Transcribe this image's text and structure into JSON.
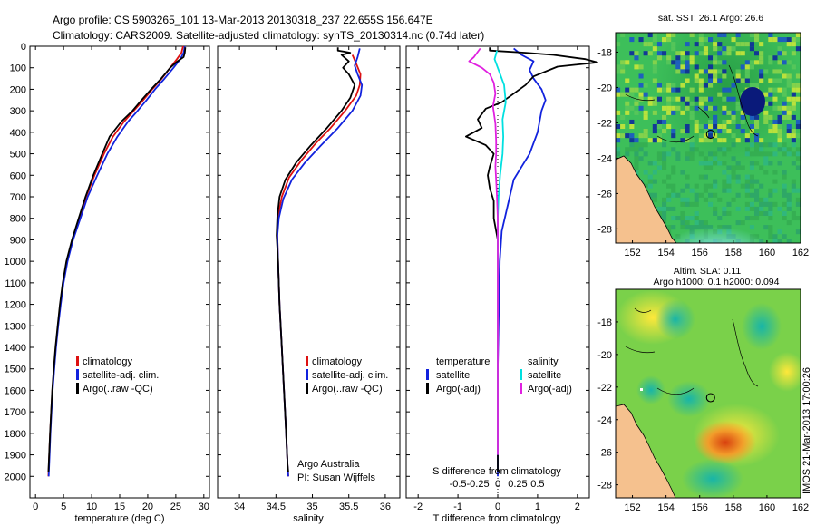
{
  "header": {
    "line1": "Argo profile: CS 5903265_101 13-Mar-2013 20130318_237 22.655S 156.647E",
    "line2": "Climatology: CARS2009. Satellite-adjusted climatology: synTS_20130314.nc (0.74d later)"
  },
  "side_label": "IMOS 21-Mar-2013 17:00:26",
  "credit": {
    "line1": "Argo Australia",
    "line2": "PI: Susan Wijffels"
  },
  "colors": {
    "clim": "#dd1111",
    "sat": "#1122dd",
    "argo": "#000000",
    "cyan": "#00e0e0",
    "magenta": "#e020e0",
    "land": "#f5c18e"
  },
  "chart_data": [
    {
      "id": "temperature",
      "type": "line",
      "xlabel": "temperature (deg C)",
      "ylabel": "",
      "xlim": [
        -1,
        31
      ],
      "ylim": [
        2100,
        0
      ],
      "xticks": [
        "0",
        "5",
        "10",
        "15",
        "20",
        "25",
        "30"
      ],
      "yticks": [
        "0",
        "100",
        "200",
        "300",
        "400",
        "500",
        "600",
        "700",
        "800",
        "900",
        "1000",
        "1100",
        "1200",
        "1300",
        "1400",
        "1500",
        "1600",
        "1700",
        "1800",
        "1900",
        "2000"
      ],
      "legend": [
        "climatology",
        "satellite-adj. clim.",
        "Argo(..raw -QC)"
      ],
      "series": [
        {
          "name": "climatology",
          "color": "clim",
          "points": [
            [
              26.3,
              0
            ],
            [
              26.0,
              30
            ],
            [
              25.2,
              60
            ],
            [
              24.0,
              100
            ],
            [
              22.5,
              150
            ],
            [
              20.8,
              200
            ],
            [
              19.2,
              250
            ],
            [
              17.5,
              300
            ],
            [
              15.8,
              350
            ],
            [
              13.8,
              420
            ],
            [
              12.2,
              500
            ],
            [
              10.5,
              600
            ],
            [
              9.0,
              700
            ],
            [
              7.8,
              800
            ],
            [
              6.6,
              900
            ],
            [
              5.6,
              1000
            ],
            [
              4.9,
              1100
            ],
            [
              4.4,
              1200
            ],
            [
              4.0,
              1300
            ],
            [
              3.6,
              1400
            ],
            [
              3.3,
              1500
            ],
            [
              3.0,
              1600
            ],
            [
              2.8,
              1700
            ],
            [
              2.6,
              1800
            ],
            [
              2.45,
              1900
            ],
            [
              2.3,
              2000
            ]
          ]
        },
        {
          "name": "satellite-adj. clim.",
          "color": "sat",
          "points": [
            [
              26.6,
              0
            ],
            [
              26.4,
              30
            ],
            [
              25.8,
              60
            ],
            [
              24.6,
              100
            ],
            [
              23.0,
              150
            ],
            [
              21.3,
              200
            ],
            [
              19.8,
              250
            ],
            [
              18.2,
              300
            ],
            [
              16.5,
              350
            ],
            [
              14.6,
              420
            ],
            [
              12.8,
              500
            ],
            [
              11.0,
              600
            ],
            [
              9.3,
              700
            ],
            [
              8.0,
              800
            ],
            [
              6.7,
              900
            ],
            [
              5.7,
              1000
            ],
            [
              5.0,
              1100
            ],
            [
              4.5,
              1200
            ],
            [
              4.05,
              1300
            ],
            [
              3.65,
              1400
            ],
            [
              3.35,
              1500
            ],
            [
              3.05,
              1600
            ],
            [
              2.85,
              1700
            ],
            [
              2.65,
              1800
            ],
            [
              2.5,
              1900
            ],
            [
              2.35,
              2000
            ]
          ]
        },
        {
          "name": "Argo(..raw -QC)",
          "color": "argo",
          "points": [
            [
              26.7,
              5
            ],
            [
              26.6,
              30
            ],
            [
              26.4,
              50
            ],
            [
              25.3,
              70
            ],
            [
              24.0,
              100
            ],
            [
              22.4,
              150
            ],
            [
              20.6,
              200
            ],
            [
              18.9,
              250
            ],
            [
              17.3,
              300
            ],
            [
              15.3,
              350
            ],
            [
              13.2,
              420
            ],
            [
              11.9,
              500
            ],
            [
              10.3,
              600
            ],
            [
              8.9,
              700
            ],
            [
              7.7,
              800
            ],
            [
              6.5,
              900
            ],
            [
              5.5,
              1000
            ],
            [
              4.85,
              1100
            ],
            [
              4.35,
              1200
            ],
            [
              3.95,
              1300
            ],
            [
              3.55,
              1400
            ],
            [
              3.25,
              1500
            ],
            [
              2.98,
              1600
            ],
            [
              2.78,
              1700
            ],
            [
              2.58,
              1800
            ],
            [
              2.43,
              1900
            ],
            [
              2.3,
              1980
            ]
          ]
        }
      ]
    },
    {
      "id": "salinity",
      "type": "line",
      "xlabel": "salinity",
      "ylabel": "",
      "xlim": [
        33.7,
        36.2
      ],
      "ylim": [
        2100,
        0
      ],
      "xticks": [
        "34",
        "34.5",
        "35",
        "35.5",
        "36"
      ],
      "legend": [
        "climatology",
        "satellite-adj. clim.",
        "Argo(..raw -QC)"
      ],
      "series": [
        {
          "name": "climatology",
          "color": "clim",
          "points": [
            [
              35.55,
              40
            ],
            [
              35.6,
              80
            ],
            [
              35.66,
              130
            ],
            [
              35.65,
              180
            ],
            [
              35.6,
              230
            ],
            [
              35.45,
              300
            ],
            [
              35.25,
              380
            ],
            [
              35.05,
              450
            ],
            [
              34.85,
              530
            ],
            [
              34.68,
              610
            ],
            [
              34.58,
              700
            ],
            [
              34.53,
              790
            ],
            [
              34.52,
              880
            ],
            [
              34.53,
              1000
            ],
            [
              34.55,
              1200
            ],
            [
              34.58,
              1400
            ],
            [
              34.61,
              1600
            ],
            [
              34.64,
              1800
            ],
            [
              34.66,
              1950
            ],
            [
              34.67,
              2000
            ]
          ]
        },
        {
          "name": "satellite-adj. clim.",
          "color": "sat",
          "points": [
            [
              35.65,
              10
            ],
            [
              35.62,
              50
            ],
            [
              35.58,
              90
            ],
            [
              35.62,
              130
            ],
            [
              35.68,
              180
            ],
            [
              35.66,
              230
            ],
            [
              35.55,
              300
            ],
            [
              35.35,
              380
            ],
            [
              35.12,
              460
            ],
            [
              34.9,
              540
            ],
            [
              34.72,
              620
            ],
            [
              34.6,
              710
            ],
            [
              34.54,
              800
            ],
            [
              34.52,
              880
            ],
            [
              34.53,
              1000
            ],
            [
              34.55,
              1200
            ],
            [
              34.58,
              1400
            ],
            [
              34.61,
              1600
            ],
            [
              34.64,
              1800
            ],
            [
              34.66,
              1950
            ],
            [
              34.67,
              2000
            ]
          ]
        },
        {
          "name": "Argo(..raw -QC)",
          "color": "argo",
          "points": [
            [
              35.35,
              5
            ],
            [
              35.35,
              20
            ],
            [
              35.52,
              30
            ],
            [
              35.4,
              40
            ],
            [
              35.5,
              70
            ],
            [
              35.42,
              100
            ],
            [
              35.5,
              130
            ],
            [
              35.58,
              180
            ],
            [
              35.52,
              240
            ],
            [
              35.4,
              300
            ],
            [
              35.2,
              380
            ],
            [
              34.98,
              460
            ],
            [
              34.78,
              540
            ],
            [
              34.63,
              620
            ],
            [
              34.55,
              700
            ],
            [
              34.52,
              790
            ],
            [
              34.51,
              880
            ],
            [
              34.53,
              1000
            ],
            [
              34.55,
              1200
            ],
            [
              34.58,
              1400
            ],
            [
              34.61,
              1600
            ],
            [
              34.64,
              1800
            ],
            [
              34.66,
              1950
            ],
            [
              34.67,
              1980
            ]
          ]
        }
      ]
    },
    {
      "id": "difference",
      "type": "line",
      "xlabel": "T difference from climatology",
      "top_label": "S difference from climatology",
      "xlim": [
        -2.3,
        2.3
      ],
      "ylim": [
        2100,
        0
      ],
      "xticks": [
        "-2",
        "-1",
        "0",
        "1",
        "2"
      ],
      "s_ticks": [
        "-0.5",
        "-0.25",
        "0",
        "0.25",
        "0.5"
      ],
      "legend_temperature_title": "temperature",
      "legend_salinity_title": "salinity",
      "legend": [
        "satellite",
        "Argo(-adj)",
        "satellite",
        "Argo(-adj)"
      ],
      "series": [
        {
          "name": "T satellite",
          "color": "sat",
          "points": [
            [
              0.4,
              10
            ],
            [
              0.6,
              40
            ],
            [
              0.9,
              70
            ],
            [
              0.8,
              110
            ],
            [
              0.9,
              150
            ],
            [
              1.1,
              200
            ],
            [
              1.2,
              250
            ],
            [
              1.1,
              300
            ],
            [
              1.0,
              400
            ],
            [
              0.8,
              500
            ],
            [
              0.6,
              560
            ],
            [
              0.4,
              620
            ],
            [
              0.3,
              700
            ],
            [
              0.2,
              780
            ],
            [
              0.1,
              860
            ],
            [
              0.05,
              1000
            ],
            [
              0.0,
              1500
            ],
            [
              0.0,
              2000
            ]
          ]
        },
        {
          "name": "T Argo(-adj)",
          "color": "argo",
          "points": [
            [
              -0.2,
              5
            ],
            [
              -0.2,
              20
            ],
            [
              0.7,
              30
            ],
            [
              1.4,
              40
            ],
            [
              2.2,
              60
            ],
            [
              2.5,
              75
            ],
            [
              1.5,
              95
            ],
            [
              0.9,
              140
            ],
            [
              0.7,
              180
            ],
            [
              0.4,
              220
            ],
            [
              0.1,
              260
            ],
            [
              -0.3,
              290
            ],
            [
              -0.5,
              340
            ],
            [
              -0.4,
              380
            ],
            [
              -0.8,
              420
            ],
            [
              -0.3,
              460
            ],
            [
              -0.1,
              500
            ],
            [
              -0.2,
              560
            ],
            [
              -0.25,
              600
            ],
            [
              -0.2,
              660
            ],
            [
              -0.1,
              720
            ],
            [
              -0.1,
              800
            ],
            [
              0.0,
              900
            ],
            [
              0.0,
              1200
            ],
            [
              0.0,
              1980
            ]
          ]
        },
        {
          "name": "S satellite",
          "color": "cyan",
          "points": [
            [
              -0.01,
              20
            ],
            [
              -0.04,
              60
            ],
            [
              0.0,
              100
            ],
            [
              0.08,
              180
            ],
            [
              0.1,
              260
            ],
            [
              0.06,
              340
            ],
            [
              0.07,
              420
            ],
            [
              0.06,
              500
            ],
            [
              0.03,
              600
            ],
            [
              0.01,
              700
            ],
            [
              0.0,
              800
            ],
            [
              0.0,
              1200
            ],
            [
              0.0,
              1500
            ],
            [
              0.0,
              1900
            ]
          ]
        },
        {
          "name": "S Argo(-adj)",
          "color": "magenta",
          "points": [
            [
              -0.22,
              10
            ],
            [
              -0.3,
              50
            ],
            [
              -0.36,
              70
            ],
            [
              -0.2,
              100
            ],
            [
              -0.1,
              130
            ],
            [
              -0.05,
              170
            ],
            [
              -0.03,
              220
            ],
            [
              -0.06,
              280
            ],
            [
              -0.03,
              360
            ],
            [
              -0.02,
              440
            ],
            [
              -0.02,
              500
            ],
            [
              -0.03,
              560
            ],
            [
              -0.02,
              620
            ],
            [
              -0.01,
              700
            ],
            [
              0.0,
              800
            ],
            [
              0.0,
              1200
            ],
            [
              0.0,
              1900
            ]
          ]
        }
      ]
    },
    {
      "id": "sst_map",
      "type": "heatmap",
      "title": "sat. SST: 26.1  Argo: 26.6",
      "xlim": [
        151,
        162
      ],
      "ylim": [
        -28.8,
        -16.9
      ],
      "xticks": [
        "152",
        "154",
        "156",
        "158",
        "160",
        "162"
      ],
      "yticks": [
        "-18",
        "-20",
        "-22",
        "-24",
        "-26",
        "-28"
      ],
      "marker": {
        "lon": 156.65,
        "lat": -22.65
      }
    },
    {
      "id": "sla_map",
      "type": "heatmap",
      "title_line1": "Altim. SLA: 0.11",
      "title_line2": "Argo h1000: 0.1  h2000: 0.094",
      "xlim": [
        151,
        162
      ],
      "ylim": [
        -28.8,
        -16.0
      ],
      "xticks": [
        "152",
        "154",
        "156",
        "158",
        "160",
        "162"
      ],
      "yticks": [
        "-18",
        "-20",
        "-22",
        "-24",
        "-26",
        "-28"
      ],
      "marker": {
        "lon": 156.65,
        "lat": -22.65
      }
    }
  ]
}
